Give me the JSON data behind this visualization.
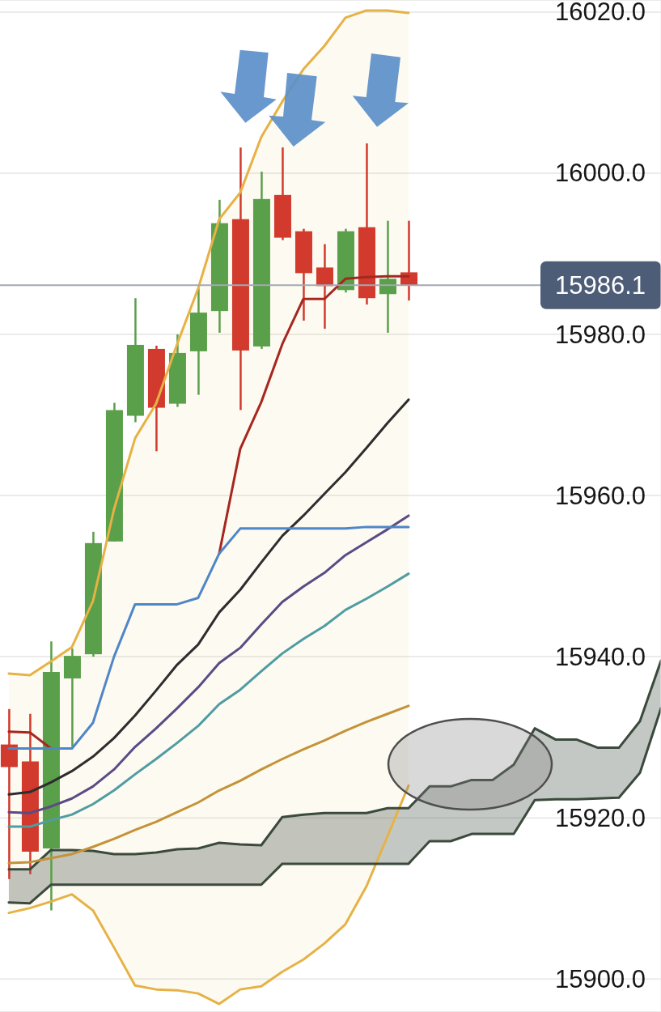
{
  "chart_data": {
    "type": "candlestick",
    "categories": [
      null,
      null,
      null,
      null,
      null,
      null,
      null,
      null,
      null,
      null,
      null,
      null,
      null,
      null,
      null,
      null,
      null,
      null,
      null,
      null,
      null,
      null,
      null,
      null,
      null,
      null,
      null,
      null,
      null,
      null,
      null,
      null
    ],
    "ohlc": [
      [
        15929.1,
        15933.5,
        15912.4,
        15926.3
      ],
      [
        15927.0,
        15932.9,
        15913.0,
        15915.8
      ],
      [
        15916.2,
        15941.9,
        15908.5,
        15938.1
      ],
      [
        15937.3,
        15941.0,
        15928.8,
        15940.1
      ],
      [
        15940.3,
        15955.5,
        15940.0,
        15954.1
      ],
      [
        15954.3,
        15971.5,
        15954.3,
        15970.6
      ],
      [
        15969.9,
        15984.5,
        15969.1,
        15978.7
      ],
      [
        15978.2,
        15978.6,
        15965.5,
        15970.9
      ],
      [
        15971.4,
        15980.0,
        15971.0,
        15977.7
      ],
      [
        15977.9,
        15985.7,
        15972.5,
        15982.7
      ],
      [
        15982.9,
        15996.7,
        15980.2,
        15993.8
      ],
      [
        15994.3,
        16003.2,
        15970.6,
        15978.0
      ],
      [
        15978.5,
        16000.2,
        15978.2,
        15996.8
      ],
      [
        15997.3,
        16003.2,
        15991.7,
        15992.0
      ],
      [
        15992.8,
        15993.1,
        15981.7,
        15987.6
      ],
      [
        15988.3,
        15991.2,
        15980.7,
        15986.0
      ],
      [
        15985.5,
        15993.1,
        15985.2,
        15992.8
      ],
      [
        15993.3,
        16003.7,
        15983.7,
        15984.5
      ],
      [
        15985.0,
        15994.1,
        15980.2,
        15986.9
      ],
      [
        15987.7,
        15994.1,
        15984.2,
        15986.1
      ],
      null,
      null,
      null,
      null,
      null,
      null,
      null,
      null,
      null,
      null,
      null,
      null
    ],
    "colors": [
      "#d13a2c",
      "#d13a2c",
      "#5a9f4a",
      "#5a9f4a",
      "#5a9f4a",
      "#5a9f4a",
      "#5a9f4a",
      "#d13a2c",
      "#5a9f4a",
      "#5a9f4a",
      "#5a9f4a",
      "#d13a2c",
      "#5a9f4a",
      "#d13a2c",
      "#d13a2c",
      "#d13a2c",
      "#5a9f4a",
      "#d13a2c",
      "#5a9f4a",
      "#d13a2c",
      null,
      null,
      null,
      null,
      null,
      null,
      null,
      null,
      null,
      null,
      null,
      null
    ],
    "series": [
      {
        "type": "line",
        "color": "#e6b245",
        "values": [
          15937.9,
          15937.7,
          15939.4,
          15941.2,
          15946.9,
          15958.3,
          15967.1,
          15971.4,
          15978.8,
          15985.7,
          15994.3,
          15997.6,
          16004.5,
          16008.9,
          16012.9,
          16015.8,
          16019.3,
          16020.2,
          16020.2,
          16019.9,
          null,
          null,
          null,
          null,
          null,
          null,
          null,
          null,
          null,
          null,
          null,
          null
        ],
        "lower": [
          15908.2,
          15908.8,
          15909.6,
          15910.5,
          15908.5,
          15903.9,
          15899.2,
          15898.7,
          15898.6,
          15898.2,
          15896.9,
          15898.7,
          15899.1,
          15900.9,
          15902.4,
          15904.4,
          15906.8,
          15911.5,
          15917.7,
          15924.0,
          null,
          null,
          null,
          null,
          null,
          null,
          null,
          null,
          null,
          null,
          null,
          null
        ],
        "upper": [
          15937.9,
          15937.7,
          15939.4,
          15941.2,
          15946.9,
          15958.3,
          15967.1,
          15971.4,
          15978.8,
          15985.7,
          15994.3,
          15997.6,
          16004.5,
          16008.9,
          16012.9,
          16015.8,
          16019.3,
          16020.2,
          16020.2,
          16019.9,
          null,
          null,
          null,
          null,
          null,
          null,
          null,
          null,
          null,
          null,
          null,
          null
        ]
      },
      {
        "type": "line",
        "color": "#e6b245",
        "values": [
          15908.2,
          15908.8,
          15909.6,
          15910.5,
          15908.5,
          15903.9,
          15899.2,
          15898.7,
          15898.6,
          15898.2,
          15896.9,
          15898.7,
          15899.1,
          15900.9,
          15902.4,
          15904.4,
          15906.8,
          15911.5,
          15917.7,
          15924.0,
          null,
          null,
          null,
          null,
          null,
          null,
          null,
          null,
          null,
          null,
          null,
          null
        ]
      },
      {
        "type": "line",
        "color": "#3b4a3c",
        "values": [
          15913.6,
          15913.6,
          15916.0,
          15916.0,
          15915.9,
          15915.5,
          15915.5,
          15915.7,
          15916.1,
          15916.2,
          15916.9,
          15916.7,
          15916.6,
          15920.1,
          15920.4,
          15920.6,
          15920.6,
          15920.6,
          15921.2,
          15921.2,
          15923.9,
          15923.9,
          15924.7,
          15924.7,
          15926.6,
          15931.1,
          15929.7,
          15929.7,
          15928.7,
          15928.7,
          15932.0,
          15939.5
        ],
        "lower": [
          15909.5,
          15909.4,
          15911.7,
          15911.7,
          15911.7,
          15911.7,
          15911.7,
          15911.7,
          15911.7,
          15911.7,
          15911.7,
          15911.7,
          15911.7,
          15914.3,
          15914.3,
          15914.3,
          15914.3,
          15914.3,
          15914.3,
          15914.3,
          15917.1,
          15917.1,
          15918.0,
          15918.0,
          15918.0,
          15922.2,
          15922.3,
          15922.3,
          15922.4,
          15922.5,
          15925.6,
          15933.6
        ],
        "upper": [
          15913.6,
          15913.6,
          15916.0,
          15916.0,
          15915.9,
          15915.5,
          15915.5,
          15915.7,
          15916.1,
          15916.2,
          15916.9,
          15916.7,
          15916.6,
          15920.1,
          15920.4,
          15920.6,
          15920.6,
          15920.6,
          15921.2,
          15921.2,
          15923.9,
          15923.9,
          15924.7,
          15924.7,
          15926.6,
          15931.1,
          15929.7,
          15929.7,
          15928.7,
          15928.7,
          15932.0,
          15939.5
        ]
      },
      {
        "type": "line",
        "color": "#3b4a3c",
        "values": [
          15909.5,
          15909.4,
          15911.7,
          15911.7,
          15911.7,
          15911.7,
          15911.7,
          15911.7,
          15911.7,
          15911.7,
          15911.7,
          15911.7,
          15911.7,
          15914.3,
          15914.3,
          15914.3,
          15914.3,
          15914.3,
          15914.3,
          15914.3,
          15917.1,
          15917.1,
          15918.0,
          15918.0,
          15918.0,
          15922.2,
          15922.3,
          15922.3,
          15922.4,
          15922.5,
          15925.6,
          15933.6
        ]
      },
      {
        "type": "line",
        "color": "#c39338",
        "values": [
          15914.4,
          15914.5,
          15915.0,
          15915.5,
          15916.4,
          15917.4,
          15918.5,
          15919.5,
          15920.7,
          15921.9,
          15923.4,
          15924.6,
          15926.0,
          15927.3,
          15928.5,
          15929.6,
          15930.8,
          15931.9,
          15932.9,
          15933.9,
          null,
          null,
          null,
          null,
          null,
          null,
          null,
          null,
          null,
          null,
          null,
          null
        ]
      },
      {
        "type": "line",
        "color": "#2d2d2d",
        "values": [
          15922.9,
          15923.2,
          15924.4,
          15925.8,
          15927.6,
          15929.9,
          15932.7,
          15935.8,
          15939.0,
          15941.5,
          15945.5,
          15948.3,
          15951.7,
          15955.0,
          15957.5,
          15960.2,
          15962.9,
          15965.9,
          15969.0,
          15971.9,
          null,
          null,
          null,
          null,
          null,
          null,
          null,
          null,
          null,
          null,
          null,
          null
        ]
      },
      {
        "type": "line",
        "color": "#4f9ca1",
        "values": [
          15918.9,
          15918.9,
          15919.7,
          15920.4,
          15921.7,
          15923.4,
          15925.4,
          15927.3,
          15929.3,
          15931.4,
          15934.1,
          15935.9,
          15938.2,
          15940.4,
          15942.2,
          15943.8,
          15945.8,
          15947.2,
          15948.7,
          15950.3,
          null,
          null,
          null,
          null,
          null,
          null,
          null,
          null,
          null,
          null,
          null,
          null
        ]
      },
      {
        "type": "line",
        "color": "#5a4b85",
        "values": [
          15920.7,
          15920.6,
          15921.4,
          15922.4,
          15923.9,
          15926.0,
          15928.8,
          15931.1,
          15933.6,
          15936.2,
          15939.2,
          15941.1,
          15944.0,
          15946.8,
          15948.7,
          15950.4,
          15952.6,
          15954.2,
          15955.8,
          15957.5,
          null,
          null,
          null,
          null,
          null,
          null,
          null,
          null,
          null,
          null,
          null,
          null
        ]
      },
      {
        "type": "line",
        "color": "#a6271f",
        "values": [
          15930.7,
          15930.6,
          15928.6,
          null,
          null,
          null,
          null,
          null,
          null,
          null,
          15952.8,
          15965.8,
          15971.6,
          15978.8,
          15984.4,
          15984.4,
          15986.9,
          15987.1,
          15987.2,
          15987.2,
          null,
          null,
          null,
          null,
          null,
          null,
          null,
          null,
          null,
          null,
          null,
          null
        ]
      },
      {
        "type": "line",
        "color": "#4f86c8",
        "values": [
          15928.6,
          15928.6,
          15928.6,
          15928.6,
          15931.8,
          15940.0,
          15946.5,
          15946.5,
          15946.5,
          15947.3,
          15952.8,
          15955.9,
          15955.9,
          15955.9,
          15955.9,
          15955.9,
          15955.9,
          15956.1,
          15956.1,
          15956.1,
          null,
          null,
          null,
          null,
          null,
          null,
          null,
          null,
          null,
          null,
          null,
          null
        ]
      }
    ],
    "ylim": [
      15895.9,
      16021.5
    ],
    "yticks": [
      {
        "value": 15900,
        "label": "15900.0"
      },
      {
        "value": 15920,
        "label": "15920.0"
      },
      {
        "value": 15940,
        "label": "15940.0"
      },
      {
        "value": 15960,
        "label": "15960.0"
      },
      {
        "value": 15980,
        "label": "15980.0"
      },
      {
        "value": 16000,
        "label": "16000.0"
      },
      {
        "value": 16020,
        "label": "16020.0"
      }
    ],
    "ref_lines": [
      {
        "axis": "y",
        "value": 15986.1,
        "label": "15986.1",
        "color": "#a3a8b3"
      }
    ],
    "grid": "y",
    "tick_labels": "y"
  }
}
